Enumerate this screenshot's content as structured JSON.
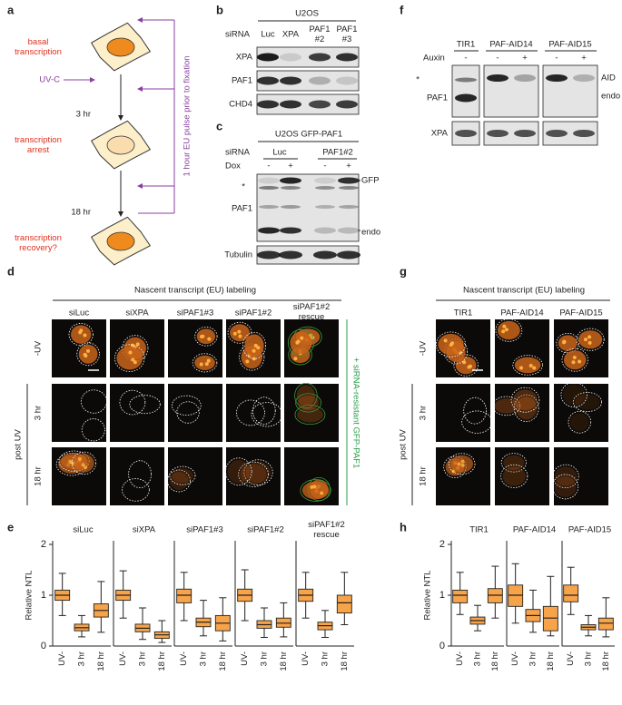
{
  "panel_labels": [
    "a",
    "b",
    "c",
    "d",
    "e",
    "f",
    "g",
    "h"
  ],
  "panel_a": {
    "basal": "basal\ntranscription",
    "uv": "UV-C",
    "t1": "3 hr",
    "arrest": "transcription\narrest",
    "t2": "18 hr",
    "recovery": "transcription\nrecovery?",
    "pulse": "1 hour EU pulse prior to fixation"
  },
  "panel_b": {
    "cell_line": "U2OS",
    "row_header": "siRNA",
    "lanes": [
      "Luc",
      "XPA",
      "PAF1\n#2",
      "PAF1\n#3"
    ],
    "rows": [
      "XPA",
      "PAF1",
      "CHD4"
    ]
  },
  "panel_c": {
    "cell_line": "U2OS GFP-PAF1",
    "row_header": "siRNA",
    "groups": [
      "Luc",
      "PAF1#2"
    ],
    "dox": "Dox",
    "dox_states": [
      "-",
      "+",
      "-",
      "+"
    ],
    "star": "*",
    "protein": "PAF1",
    "bands": [
      "GFP",
      "endo"
    ],
    "loading": "Tubulin"
  },
  "panel_f": {
    "lanes": [
      "TIR1",
      "PAF-AID14",
      "PAF-AID15"
    ],
    "auxin": "Auxin",
    "auxin_states": [
      "-",
      "-",
      "+",
      "-",
      "+"
    ],
    "star": "*",
    "rows": [
      "PAF1",
      "XPA"
    ],
    "bands": [
      "AID",
      "endo"
    ]
  },
  "panel_d": {
    "title": "Nascent transcript (EU) labeling",
    "columns": [
      "siLuc",
      "siXPA",
      "siPAF1#3",
      "siPAF1#2",
      "siPAF1#2\nrescue"
    ],
    "rows": [
      "-UV",
      "3 hr",
      "18 hr"
    ],
    "group": "post UV",
    "rescue_note": "+ siRNA-resistant GFP-PAF1"
  },
  "panel_g": {
    "title": "Nascent transcript (EU) labeling",
    "columns": [
      "TIR1",
      "PAF-AID14",
      "PAF-AID15"
    ],
    "rows": [
      "-UV",
      "3 hr",
      "18 hr"
    ],
    "group": "post UV"
  },
  "chart_data": [
    {
      "type": "box",
      "panel": "e",
      "title": "siLuc",
      "ylabel": "Relative NTL",
      "ylim": [
        0,
        2
      ],
      "yticks": [
        0,
        1,
        2
      ],
      "color": "#f7a349",
      "categories": [
        "UV-",
        "3 hr",
        "18 hr"
      ],
      "boxes": [
        {
          "whislo": 0.6,
          "q1": 0.9,
          "med": 1.0,
          "q3": 1.1,
          "whishi": 1.43
        },
        {
          "whislo": 0.18,
          "q1": 0.3,
          "med": 0.36,
          "q3": 0.43,
          "whishi": 0.6
        },
        {
          "whislo": 0.27,
          "q1": 0.57,
          "med": 0.7,
          "q3": 0.83,
          "whishi": 1.27
        }
      ]
    },
    {
      "type": "box",
      "panel": "e",
      "title": "siXPA",
      "ylim": [
        0,
        2
      ],
      "color": "#f7a349",
      "categories": [
        "UV-",
        "3 hr",
        "18 hr"
      ],
      "boxes": [
        {
          "whislo": 0.55,
          "q1": 0.9,
          "med": 1.0,
          "q3": 1.1,
          "whishi": 1.48
        },
        {
          "whislo": 0.13,
          "q1": 0.28,
          "med": 0.35,
          "q3": 0.43,
          "whishi": 0.75
        },
        {
          "whislo": 0.07,
          "q1": 0.15,
          "med": 0.22,
          "q3": 0.28,
          "whishi": 0.5
        }
      ]
    },
    {
      "type": "box",
      "panel": "e",
      "title": "siPAF1#3",
      "ylim": [
        0,
        2
      ],
      "color": "#f7a349",
      "categories": [
        "UV-",
        "3 hr",
        "18 hr"
      ],
      "boxes": [
        {
          "whislo": 0.5,
          "q1": 0.85,
          "med": 1.0,
          "q3": 1.12,
          "whishi": 1.45
        },
        {
          "whislo": 0.2,
          "q1": 0.38,
          "med": 0.47,
          "q3": 0.55,
          "whishi": 0.9
        },
        {
          "whislo": 0.1,
          "q1": 0.3,
          "med": 0.45,
          "q3": 0.6,
          "whishi": 0.95
        }
      ]
    },
    {
      "type": "box",
      "panel": "e",
      "title": "siPAF1#2",
      "ylim": [
        0,
        2
      ],
      "color": "#f7a349",
      "categories": [
        "UV-",
        "3 hr",
        "18 hr"
      ],
      "boxes": [
        {
          "whislo": 0.5,
          "q1": 0.88,
          "med": 1.0,
          "q3": 1.12,
          "whishi": 1.5
        },
        {
          "whislo": 0.17,
          "q1": 0.35,
          "med": 0.42,
          "q3": 0.5,
          "whishi": 0.75
        },
        {
          "whislo": 0.18,
          "q1": 0.37,
          "med": 0.45,
          "q3": 0.55,
          "whishi": 0.85
        }
      ]
    },
    {
      "type": "box",
      "panel": "e",
      "title": "siPAF1#2\nrescue",
      "ylim": [
        0,
        2
      ],
      "color": "#f7a349",
      "categories": [
        "UV-",
        "3 hr",
        "18 hr"
      ],
      "boxes": [
        {
          "whislo": 0.55,
          "q1": 0.88,
          "med": 1.0,
          "q3": 1.12,
          "whishi": 1.45
        },
        {
          "whislo": 0.17,
          "q1": 0.32,
          "med": 0.4,
          "q3": 0.47,
          "whishi": 0.7
        },
        {
          "whislo": 0.42,
          "q1": 0.65,
          "med": 0.85,
          "q3": 1.0,
          "whishi": 1.45
        }
      ]
    },
    {
      "type": "box",
      "panel": "h",
      "title": "TIR1",
      "ylabel": "Relative NTL",
      "ylim": [
        0,
        2
      ],
      "yticks": [
        0,
        1,
        2
      ],
      "color": "#f7a349",
      "categories": [
        "UV-",
        "3 hr",
        "18 hr"
      ],
      "boxes": [
        {
          "whislo": 0.62,
          "q1": 0.85,
          "med": 1.0,
          "q3": 1.1,
          "whishi": 1.45
        },
        {
          "whislo": 0.3,
          "q1": 0.43,
          "med": 0.5,
          "q3": 0.57,
          "whishi": 0.8
        },
        {
          "whislo": 0.55,
          "q1": 0.85,
          "med": 1.0,
          "q3": 1.13,
          "whishi": 1.57
        }
      ]
    },
    {
      "type": "box",
      "panel": "h",
      "title": "PAF-AID14",
      "ylim": [
        0,
        2
      ],
      "color": "#f7a349",
      "categories": [
        "UV-",
        "3 hr",
        "18 hr"
      ],
      "boxes": [
        {
          "whislo": 0.45,
          "q1": 0.78,
          "med": 1.0,
          "q3": 1.2,
          "whishi": 1.62
        },
        {
          "whislo": 0.27,
          "q1": 0.48,
          "med": 0.6,
          "q3": 0.72,
          "whishi": 1.1
        },
        {
          "whislo": 0.2,
          "q1": 0.3,
          "med": 0.55,
          "q3": 0.78,
          "whishi": 1.37
        }
      ]
    },
    {
      "type": "box",
      "panel": "h",
      "title": "PAF-AID15",
      "ylim": [
        0,
        2
      ],
      "color": "#f7a349",
      "categories": [
        "UV-",
        "3 hr",
        "18 hr"
      ],
      "boxes": [
        {
          "whislo": 0.62,
          "q1": 0.87,
          "med": 1.0,
          "q3": 1.2,
          "whishi": 1.55
        },
        {
          "whislo": 0.2,
          "q1": 0.32,
          "med": 0.37,
          "q3": 0.42,
          "whishi": 0.6
        },
        {
          "whislo": 0.18,
          "q1": 0.32,
          "med": 0.45,
          "q3": 0.55,
          "whishi": 0.95
        }
      ]
    }
  ]
}
